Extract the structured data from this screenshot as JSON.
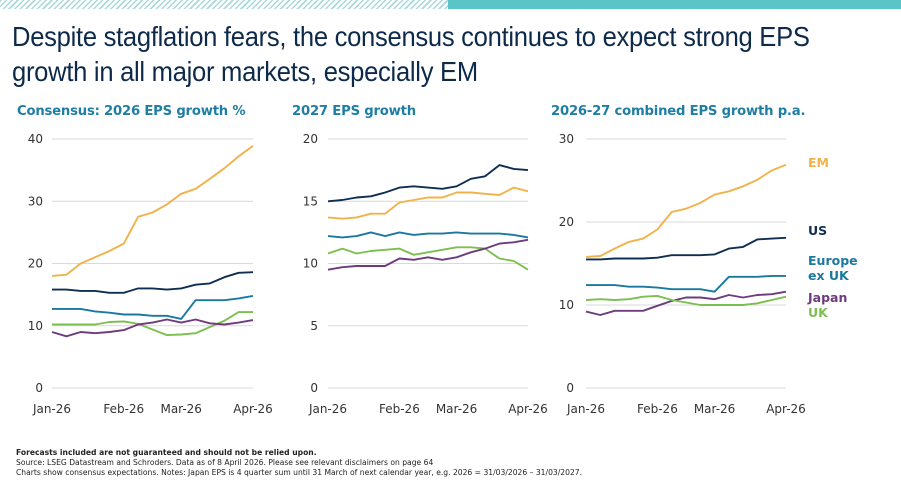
{
  "title": "Despite stagflation fears, the consensus continues to expect strong EPS growth in all major markets, especially EM",
  "colors": {
    "EM": "#f0b34a",
    "US": "#0f2f52",
    "Europe ex UK": "#1b79a0",
    "Japan": "#6e3b7e",
    "UK": "#7cbf4f",
    "grid": "#d9d9d9",
    "accent": "#5bc4c6"
  },
  "footer": {
    "line1": "Forecasts included are not guaranteed and should not be relied upon.",
    "line2": "Source: LSEG Datastream and Schroders. Data as of 8 April 2026. Please see relevant disclaimers on page 64",
    "line3": "Charts show consensus expectations. Notes: Japan EPS is 4 quarter sum until 31 March of next calendar year, e.g. 2026 = 31/03/2026 – 31/03/2027."
  },
  "chart_data": [
    {
      "type": "line",
      "title": "Consensus: 2026 EPS growth %",
      "xlabel": "",
      "ylabel": "",
      "x_ticks": [
        "Jan-26",
        "Feb-26",
        "Mar-26",
        "Apr-26"
      ],
      "x_tick_positions": [
        0,
        5,
        9,
        14
      ],
      "y_ticks": [
        0,
        10,
        20,
        30,
        40
      ],
      "ylim": [
        0,
        40
      ],
      "grid": true,
      "series": [
        {
          "name": "EM",
          "values": [
            18.0,
            18.2,
            20.0,
            21.0,
            22.0,
            23.2,
            27.5,
            28.2,
            29.5,
            31.2,
            32.0,
            33.6,
            35.3,
            37.2,
            38.9
          ]
        },
        {
          "name": "US",
          "values": [
            15.8,
            15.8,
            15.6,
            15.6,
            15.3,
            15.3,
            16.0,
            16.0,
            15.8,
            16.0,
            16.6,
            16.8,
            17.8,
            18.5,
            18.6
          ]
        },
        {
          "name": "Europe ex UK",
          "values": [
            12.7,
            12.7,
            12.7,
            12.3,
            12.1,
            11.8,
            11.8,
            11.6,
            11.6,
            11.1,
            14.1,
            14.1,
            14.1,
            14.4,
            14.8
          ]
        },
        {
          "name": "UK",
          "values": [
            10.2,
            10.2,
            10.2,
            10.2,
            10.6,
            10.7,
            10.3,
            9.4,
            8.5,
            8.6,
            8.8,
            9.8,
            10.8,
            12.2,
            12.2
          ]
        },
        {
          "name": "Japan",
          "values": [
            9.0,
            8.3,
            9.0,
            8.8,
            9.0,
            9.3,
            10.2,
            10.5,
            11.0,
            10.5,
            11.0,
            10.4,
            10.2,
            10.5,
            10.9
          ]
        }
      ]
    },
    {
      "type": "line",
      "title": "2027 EPS growth",
      "xlabel": "",
      "ylabel": "",
      "x_ticks": [
        "Jan-26",
        "Feb-26",
        "Mar-26",
        "Apr-26"
      ],
      "x_tick_positions": [
        0,
        5,
        9,
        14
      ],
      "y_ticks": [
        0,
        5,
        10,
        15,
        20
      ],
      "ylim": [
        0,
        20
      ],
      "grid": true,
      "series": [
        {
          "name": "US",
          "values": [
            15.0,
            15.1,
            15.3,
            15.4,
            15.7,
            16.1,
            16.2,
            16.1,
            16.0,
            16.2,
            16.8,
            17.0,
            17.9,
            17.6,
            17.5
          ]
        },
        {
          "name": "EM",
          "values": [
            13.7,
            13.6,
            13.7,
            14.0,
            14.0,
            14.9,
            15.1,
            15.3,
            15.3,
            15.7,
            15.7,
            15.6,
            15.5,
            16.1,
            15.8
          ]
        },
        {
          "name": "Europe ex UK",
          "values": [
            12.2,
            12.1,
            12.2,
            12.5,
            12.2,
            12.5,
            12.3,
            12.4,
            12.4,
            12.5,
            12.4,
            12.4,
            12.4,
            12.3,
            12.1
          ]
        },
        {
          "name": "UK",
          "values": [
            10.8,
            11.2,
            10.8,
            11.0,
            11.1,
            11.2,
            10.7,
            10.9,
            11.1,
            11.3,
            11.3,
            11.2,
            10.4,
            10.2,
            9.5
          ]
        },
        {
          "name": "Japan",
          "values": [
            9.5,
            9.7,
            9.8,
            9.8,
            9.8,
            10.4,
            10.3,
            10.5,
            10.3,
            10.5,
            10.9,
            11.2,
            11.6,
            11.7,
            11.9
          ]
        }
      ]
    },
    {
      "type": "line",
      "title": "2026-27 combined EPS growth p.a.",
      "xlabel": "",
      "ylabel": "",
      "x_ticks": [
        "Jan-26",
        "Feb-26",
        "Mar-26",
        "Apr-26"
      ],
      "x_tick_positions": [
        0,
        5,
        9,
        14
      ],
      "y_ticks": [
        0,
        10,
        20,
        30
      ],
      "ylim": [
        0,
        30
      ],
      "grid": true,
      "legend_position": "right",
      "legend": [
        "EM",
        "US",
        "Europe ex UK",
        "Japan",
        "UK"
      ],
      "series": [
        {
          "name": "EM",
          "values": [
            15.8,
            15.9,
            16.8,
            17.6,
            18.0,
            19.1,
            21.2,
            21.6,
            22.3,
            23.3,
            23.7,
            24.3,
            25.1,
            26.2,
            26.9
          ]
        },
        {
          "name": "US",
          "values": [
            15.5,
            15.5,
            15.6,
            15.6,
            15.6,
            15.7,
            16.0,
            16.0,
            16.0,
            16.1,
            16.8,
            17.0,
            17.9,
            18.0,
            18.1
          ]
        },
        {
          "name": "Europe ex UK",
          "values": [
            12.4,
            12.4,
            12.4,
            12.2,
            12.2,
            12.1,
            11.9,
            11.9,
            11.9,
            11.6,
            13.4,
            13.4,
            13.4,
            13.5,
            13.5
          ]
        },
        {
          "name": "Japan",
          "values": [
            9.2,
            8.8,
            9.3,
            9.3,
            9.3,
            9.9,
            10.5,
            10.9,
            10.9,
            10.7,
            11.2,
            10.9,
            11.2,
            11.3,
            11.6
          ]
        },
        {
          "name": "UK",
          "values": [
            10.6,
            10.7,
            10.6,
            10.7,
            11.0,
            11.1,
            10.6,
            10.3,
            10.0,
            10.0,
            10.0,
            10.0,
            10.2,
            10.6,
            11.0
          ]
        }
      ]
    }
  ]
}
